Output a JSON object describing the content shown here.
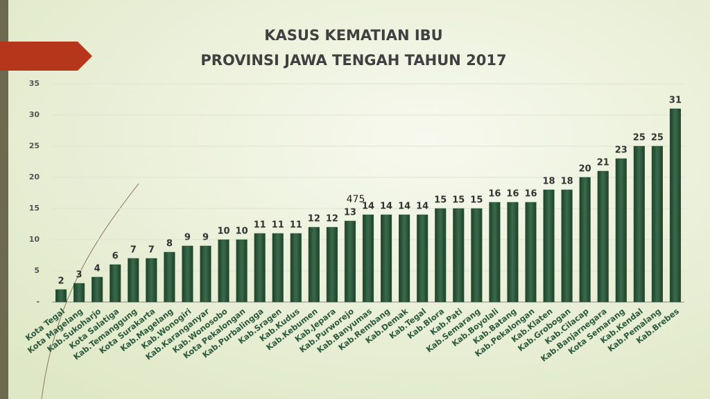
{
  "chart_data": {
    "type": "bar",
    "title": "KASUS KEMATIAN IBU",
    "subtitle": "PROVINSI JAWA TENGAH TAHUN 2017",
    "categories": [
      "Kota Tegal",
      "Kota Magelang",
      "Kab.Sukoharjo",
      "Kota Salatiga",
      "Kab.Temanggung",
      "Kota Surakarta",
      "Kab.Magelang",
      "Kab.Wonogiri",
      "Kab.Karanganyar",
      "Kab.Wonosobo",
      "Kota Pekalongan",
      "Kab.Purbalingga",
      "Kab.Sragen",
      "Kab.Kudus",
      "Kab.Kebumen",
      "Kab.Jepara",
      "Kab.Purworejo",
      "Kab.Banyumas",
      "Kab.Rembang",
      "Kab.Demak",
      "Kab.Tegal",
      "Kab.Blora",
      "Kab.Pati",
      "Kab.Semarang",
      "Kab.Boyolali",
      "Kab.Batang",
      "Kab.Pekalongan",
      "Kab.Klaten",
      "Kab.Grobogan",
      "Kab.Cilacap",
      "Kab.Banjarnegara",
      "Kota Semarang",
      "Kab.Kendal",
      "Kab.Pemalang",
      "Kab.Brebes"
    ],
    "values": [
      2,
      3,
      4,
      6,
      7,
      7,
      8,
      9,
      9,
      10,
      10,
      11,
      11,
      11,
      12,
      12,
      13,
      14,
      14,
      14,
      14,
      15,
      15,
      15,
      16,
      16,
      16,
      18,
      18,
      20,
      21,
      23,
      25,
      25,
      31
    ],
    "color": "#2d5a3d",
    "ylim": [
      0,
      35
    ],
    "yticks": [
      {
        "value": 0,
        "label": "-"
      },
      5,
      10,
      15,
      20,
      25,
      30,
      35
    ],
    "grid": true,
    "annotations": [
      "475"
    ]
  }
}
